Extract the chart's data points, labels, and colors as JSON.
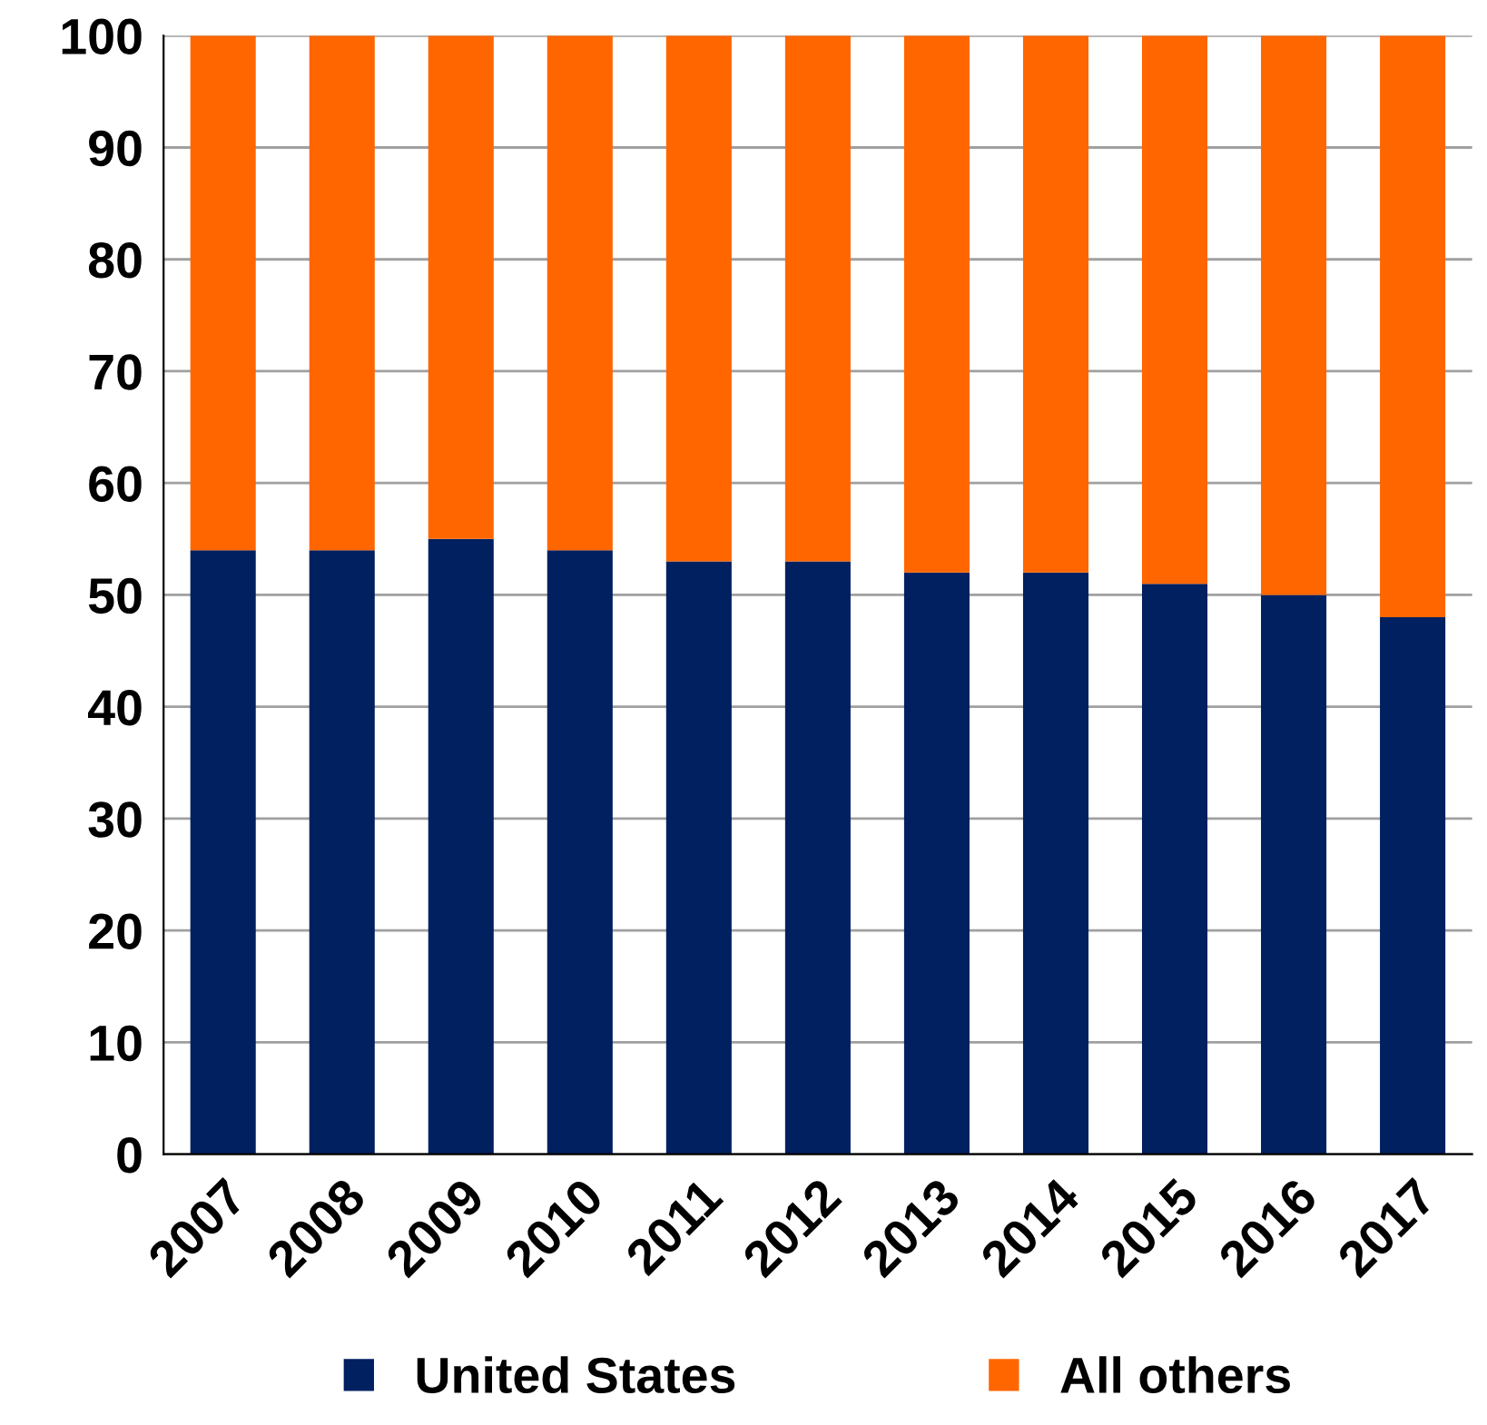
{
  "chart_data": {
    "type": "bar",
    "stacked": true,
    "categories": [
      "2007",
      "2008",
      "2009",
      "2010",
      "2011",
      "2012",
      "2013",
      "2014",
      "2015",
      "2016",
      "2017"
    ],
    "series": [
      {
        "name": "United States",
        "color": "#002060",
        "values": [
          54,
          54,
          55,
          54,
          53,
          53,
          52,
          52,
          51,
          50,
          48
        ]
      },
      {
        "name": "All others",
        "color": "#ff6600",
        "values": [
          46,
          46,
          45,
          46,
          47,
          47,
          48,
          48,
          49,
          50,
          52
        ]
      }
    ],
    "ylim": [
      0,
      100
    ],
    "yticks": [
      0,
      10,
      20,
      30,
      40,
      50,
      60,
      70,
      80,
      90,
      100
    ],
    "grid": "y",
    "legend": "bottom"
  }
}
